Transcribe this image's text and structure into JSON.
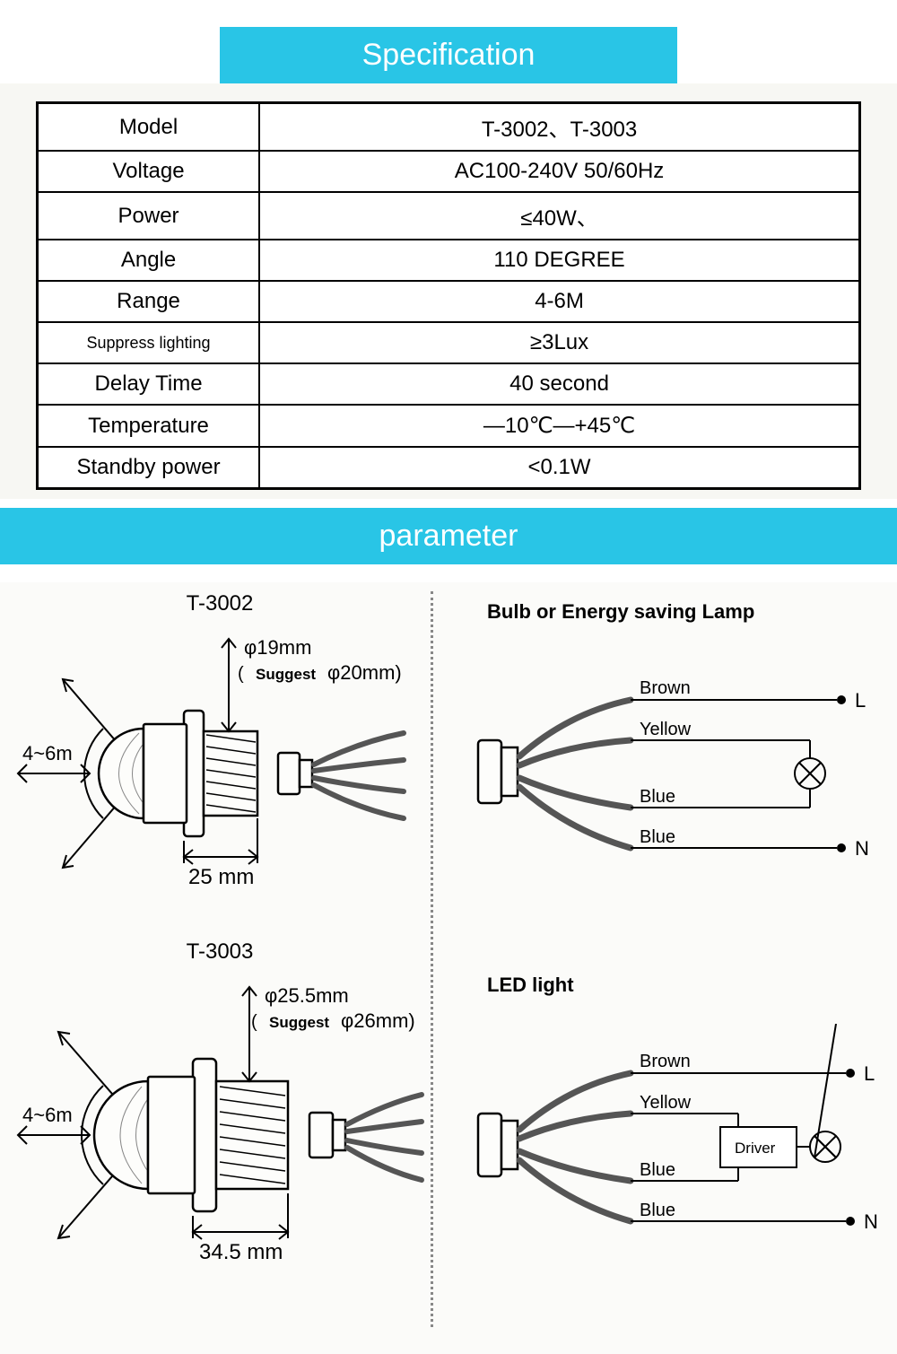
{
  "headers": {
    "specification": "Specification",
    "parameter": "parameter"
  },
  "colors": {
    "header_bg": "#29c5e6",
    "header_text": "#ffffff",
    "table_border": "#000000",
    "page_bg": "#ffffff",
    "diagram_bg": "#fbfbf9"
  },
  "spec_table": {
    "rows": [
      {
        "label": "Model",
        "value": "T-3002、T-3003"
      },
      {
        "label": "Voltage",
        "value": "AC100-240V  50/60Hz"
      },
      {
        "label": "Power",
        "value": "≤40W、"
      },
      {
        "label": "Angle",
        "value": "110 DEGREE"
      },
      {
        "label": "Range",
        "value": "4-6M"
      },
      {
        "label": "Suppress lighting",
        "value": "≥3Lux",
        "small": true
      },
      {
        "label": "Delay Time",
        "value": "40 second"
      },
      {
        "label": "Temperature",
        "value": "—10℃—+45℃"
      },
      {
        "label": "Standby power",
        "value": "<0.1W"
      }
    ]
  },
  "diagrams": {
    "t3002": {
      "title": "T-3002",
      "hole_diameter": "φ19mm",
      "suggest_label": "Suggest",
      "suggest_value": "φ20mm)",
      "range": "4~6m",
      "angle": "110°",
      "width": "25 mm"
    },
    "t3003": {
      "title": "T-3003",
      "hole_diameter": "φ25.5mm",
      "suggest_label": "Suggest",
      "suggest_value": "φ26mm)",
      "range": "4~6m",
      "angle": "110°",
      "width": "34.5 mm"
    },
    "wiring_bulb": {
      "title": "Bulb or Energy saving Lamp",
      "wires": {
        "brown": "Brown",
        "yellow": "Yellow",
        "blue1": "Blue",
        "blue2": "Blue"
      },
      "terminals": {
        "L": "L",
        "N": "N"
      }
    },
    "wiring_led": {
      "title": "LED light",
      "wires": {
        "brown": "Brown",
        "yellow": "Yellow",
        "blue1": "Blue",
        "blue2": "Blue"
      },
      "driver": "Driver",
      "terminals": {
        "L": "L",
        "N": "N"
      }
    }
  }
}
